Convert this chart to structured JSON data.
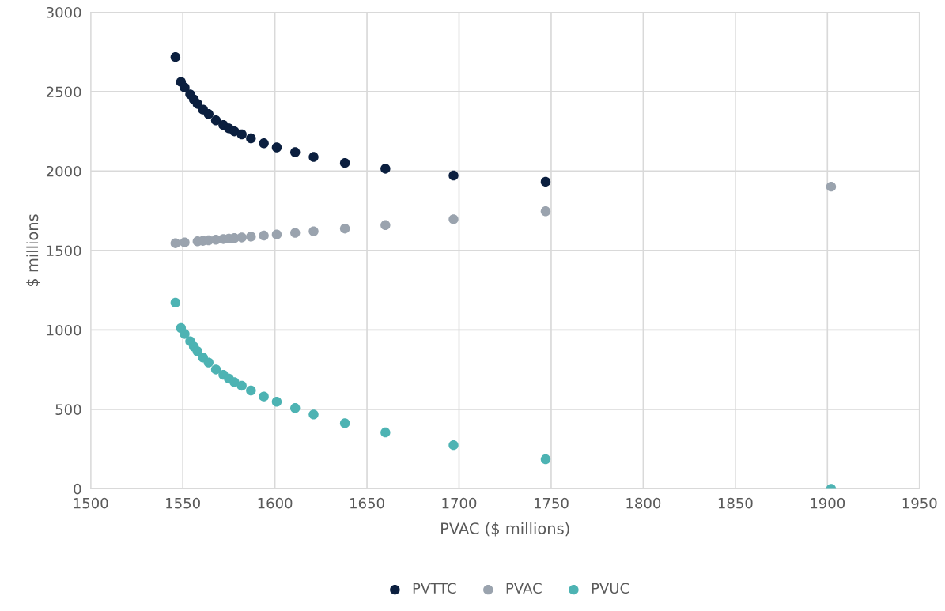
{
  "chart_data": {
    "type": "scatter",
    "xlabel": "PVAC ($ millions)",
    "ylabel": "$ millions",
    "x": [
      1546,
      1549,
      1551,
      1554,
      1556,
      1558,
      1561,
      1564,
      1568,
      1572,
      1575,
      1578,
      1582,
      1587,
      1594,
      1601,
      1611,
      1621,
      1638,
      1660,
      1697,
      1747,
      1902
    ],
    "series": [
      {
        "name": "PVTTC",
        "color": "#0b1f3f",
        "values": [
          2718,
          2561,
          2526,
          2483,
          2451,
          2423,
          2387,
          2359,
          2319,
          2290,
          2269,
          2250,
          2231,
          2206,
          2175,
          2149,
          2119,
          2089,
          2051,
          2015,
          1972,
          1933,
          null
        ]
      },
      {
        "name": "PVAC",
        "color": "#9aa3ae",
        "values": [
          1546,
          null,
          1551,
          null,
          null,
          1558,
          1561,
          1564,
          1568,
          1572,
          1575,
          1578,
          1582,
          1587,
          1594,
          1601,
          1611,
          1621,
          1638,
          1660,
          1697,
          1747,
          1902
        ]
      },
      {
        "name": "PVUC",
        "color": "#4db3b3",
        "values": [
          1172,
          1012,
          975,
          929,
          895,
          865,
          826,
          795,
          751,
          718,
          694,
          672,
          649,
          619,
          581,
          548,
          508,
          468,
          413,
          355,
          275,
          186,
          0
        ]
      }
    ],
    "xlim": [
      1500,
      1950
    ],
    "xticks": [
      1500,
      1550,
      1600,
      1650,
      1700,
      1750,
      1800,
      1850,
      1900,
      1950
    ],
    "ylim": [
      0,
      3000
    ],
    "yticks": [
      0,
      500,
      1000,
      1500,
      2000,
      2500,
      3000
    ],
    "grid": true,
    "legend": "bottom",
    "marker": "circle"
  }
}
